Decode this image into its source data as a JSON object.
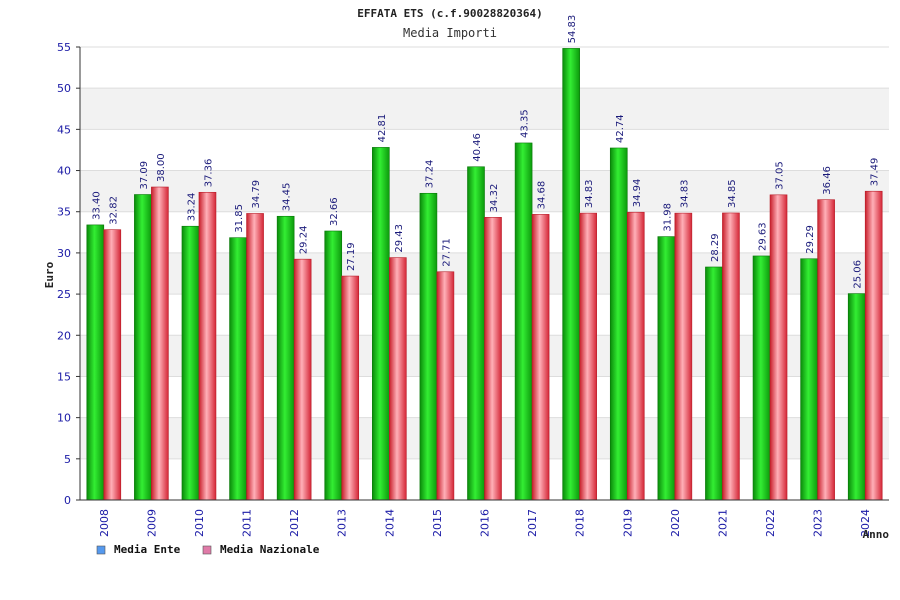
{
  "chart_data": {
    "type": "bar",
    "title": "EFFATA ETS (c.f.90028820364)",
    "subtitle": "Media Importi",
    "xlabel": "Anno",
    "ylabel": "Euro",
    "ylim": [
      0,
      55
    ],
    "yticks": [
      0,
      5,
      10,
      15,
      20,
      25,
      30,
      35,
      40,
      45,
      50,
      55
    ],
    "grid": true,
    "legend_position": "bottom-left",
    "categories": [
      "2008",
      "2009",
      "2010",
      "2011",
      "2012",
      "2013",
      "2014",
      "2015",
      "2016",
      "2017",
      "2018",
      "2019",
      "2020",
      "2021",
      "2022",
      "2023",
      "2024"
    ],
    "series": [
      {
        "name": "Media Ente",
        "legend_color": "#5599ee",
        "bar_color": "#1fc41f",
        "values": [
          33.4,
          37.09,
          33.24,
          31.85,
          34.45,
          32.66,
          42.81,
          37.24,
          40.46,
          43.35,
          54.83,
          42.74,
          31.98,
          28.29,
          29.63,
          29.29,
          25.06
        ]
      },
      {
        "name": "Media Nazionale",
        "legend_color": "#e07aa8",
        "bar_color": "#ee4455",
        "values": [
          32.82,
          38.0,
          37.36,
          34.79,
          29.24,
          27.19,
          29.43,
          27.71,
          34.32,
          34.68,
          34.83,
          34.94,
          34.83,
          34.85,
          37.05,
          36.46,
          37.49
        ]
      }
    ]
  }
}
